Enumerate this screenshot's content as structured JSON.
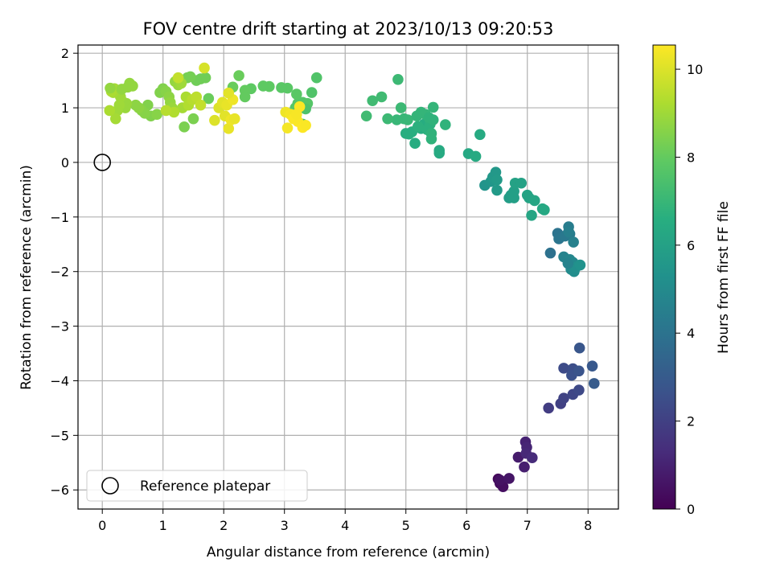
{
  "chart_data": {
    "type": "scatter",
    "title": "FOV centre drift starting at 2023/10/13 09:20:53",
    "xlabel": "Angular distance from reference (arcmin)",
    "ylabel": "Rotation from reference (arcmin)",
    "xlim": [
      -0.4,
      8.5
    ],
    "ylim": [
      -6.35,
      2.15
    ],
    "xticks": [
      0,
      1,
      2,
      3,
      4,
      5,
      6,
      7,
      8
    ],
    "yticks": [
      -6,
      -5,
      -4,
      -3,
      -2,
      -1,
      0,
      1,
      2
    ],
    "grid": true,
    "legend": {
      "placement": "lower-left",
      "entries": [
        "Reference platepar"
      ]
    },
    "colorbar": {
      "label": "Hours from first FF file",
      "range": [
        0,
        10.55
      ],
      "ticks": [
        0,
        2,
        4,
        6,
        8,
        10
      ],
      "colormap": "viridis"
    },
    "reference_point": {
      "x": 0,
      "y": 0,
      "label": "Reference platepar"
    },
    "points": [
      [
        6.52,
        -5.8,
        0.2
      ],
      [
        6.55,
        -5.88,
        0.3
      ],
      [
        6.6,
        -5.94,
        0.4
      ],
      [
        6.55,
        -5.82,
        0.5
      ],
      [
        6.7,
        -5.79,
        0.6
      ],
      [
        6.85,
        -5.4,
        0.8
      ],
      [
        6.95,
        -5.58,
        0.9
      ],
      [
        6.97,
        -5.12,
        1.0
      ],
      [
        6.99,
        -5.22,
        1.1
      ],
      [
        6.98,
        -5.33,
        1.2
      ],
      [
        7.08,
        -5.41,
        1.3
      ],
      [
        7.35,
        -4.5,
        1.9
      ],
      [
        7.55,
        -4.42,
        2.0
      ],
      [
        7.6,
        -4.32,
        2.1
      ],
      [
        7.75,
        -4.25,
        2.2
      ],
      [
        7.85,
        -4.17,
        2.3
      ],
      [
        7.6,
        -3.77,
        2.4
      ],
      [
        7.75,
        -3.78,
        2.5
      ],
      [
        7.73,
        -3.9,
        2.6
      ],
      [
        7.85,
        -3.82,
        2.7
      ],
      [
        7.86,
        -3.4,
        2.8
      ],
      [
        8.07,
        -3.73,
        2.9
      ],
      [
        8.1,
        -4.05,
        3.0
      ],
      [
        7.38,
        -1.66,
        3.9
      ],
      [
        7.5,
        -1.3,
        4.0
      ],
      [
        7.52,
        -1.4,
        4.1
      ],
      [
        7.62,
        -1.35,
        4.2
      ],
      [
        7.7,
        -1.31,
        4.3
      ],
      [
        7.68,
        -1.18,
        4.4
      ],
      [
        7.68,
        -1.27,
        4.5
      ],
      [
        7.76,
        -1.46,
        4.6
      ],
      [
        7.6,
        -1.73,
        4.7
      ],
      [
        7.7,
        -1.78,
        4.8
      ],
      [
        7.75,
        -1.83,
        4.9
      ],
      [
        7.72,
        -1.96,
        5.0
      ],
      [
        7.77,
        -2.0,
        5.1
      ],
      [
        7.8,
        -1.92,
        5.2
      ],
      [
        7.87,
        -1.88,
        5.3
      ],
      [
        7.67,
        -1.85,
        4.7
      ],
      [
        6.3,
        -0.42,
        5.4
      ],
      [
        6.4,
        -0.35,
        5.5
      ],
      [
        6.43,
        -0.27,
        5.6
      ],
      [
        6.48,
        -0.18,
        5.6
      ],
      [
        6.5,
        -0.32,
        5.7
      ],
      [
        6.5,
        -0.51,
        5.7
      ],
      [
        6.7,
        -0.65,
        5.8
      ],
      [
        6.73,
        -0.6,
        5.8
      ],
      [
        6.78,
        -0.65,
        5.9
      ],
      [
        6.78,
        -0.53,
        5.9
      ],
      [
        6.8,
        -0.38,
        6.0
      ],
      [
        6.9,
        -0.38,
        6.0
      ],
      [
        7.0,
        -0.6,
        6.1
      ],
      [
        7.03,
        -0.65,
        6.1
      ],
      [
        7.07,
        -0.97,
        6.2
      ],
      [
        7.12,
        -0.7,
        6.2
      ],
      [
        7.25,
        -0.85,
        6.3
      ],
      [
        7.28,
        -0.87,
        6.3
      ],
      [
        6.03,
        0.16,
        6.3
      ],
      [
        6.15,
        0.11,
        6.4
      ],
      [
        6.22,
        0.51,
        6.4
      ],
      [
        5.55,
        0.22,
        6.4
      ],
      [
        5.55,
        0.17,
        6.4
      ],
      [
        5.15,
        0.35,
        6.5
      ],
      [
        5.25,
        0.62,
        6.5
      ],
      [
        5.3,
        0.7,
        6.5
      ],
      [
        5.0,
        0.53,
        6.6
      ],
      [
        5.05,
        0.52,
        6.6
      ],
      [
        5.1,
        0.56,
        6.6
      ],
      [
        5.2,
        0.66,
        6.7
      ],
      [
        5.35,
        0.6,
        6.7
      ],
      [
        5.4,
        0.7,
        6.7
      ],
      [
        5.45,
        0.78,
        6.8
      ],
      [
        5.42,
        0.53,
        6.8
      ],
      [
        5.42,
        0.43,
        6.8
      ],
      [
        5.32,
        0.88,
        6.9
      ],
      [
        5.25,
        0.92,
        6.9
      ],
      [
        5.45,
        1.01,
        6.9
      ],
      [
        4.97,
        0.8,
        7.0
      ],
      [
        5.03,
        0.78,
        7.0
      ],
      [
        4.85,
        0.78,
        7.0
      ],
      [
        4.7,
        0.8,
        7.1
      ],
      [
        4.92,
        1.0,
        7.1
      ],
      [
        4.87,
        1.52,
        7.1
      ],
      [
        4.6,
        1.2,
        7.2
      ],
      [
        4.45,
        1.13,
        7.2
      ],
      [
        4.35,
        0.85,
        7.2
      ],
      [
        5.65,
        0.69,
        6.8
      ],
      [
        5.38,
        0.82,
        6.8
      ],
      [
        5.18,
        0.85,
        6.9
      ],
      [
        3.53,
        1.55,
        7.6
      ],
      [
        3.45,
        1.28,
        7.6
      ],
      [
        3.38,
        1.08,
        7.7
      ],
      [
        3.3,
        1.1,
        7.7
      ],
      [
        3.18,
        1.0,
        7.7
      ],
      [
        3.22,
        1.08,
        7.7
      ],
      [
        3.2,
        1.25,
        7.8
      ],
      [
        3.05,
        1.36,
        7.8
      ],
      [
        2.95,
        1.37,
        7.8
      ],
      [
        2.75,
        1.39,
        7.9
      ],
      [
        2.65,
        1.4,
        7.9
      ],
      [
        2.45,
        1.35,
        7.9
      ],
      [
        2.35,
        1.32,
        8.0
      ],
      [
        2.35,
        1.2,
        8.0
      ],
      [
        2.25,
        1.59,
        8.1
      ],
      [
        2.15,
        1.38,
        8.1
      ],
      [
        1.75,
        1.17,
        8.1
      ],
      [
        1.7,
        1.55,
        8.2
      ],
      [
        1.62,
        1.53,
        8.2
      ],
      [
        1.55,
        1.5,
        8.2
      ],
      [
        1.45,
        1.57,
        8.3
      ],
      [
        1.4,
        1.55,
        8.3
      ],
      [
        1.5,
        0.8,
        8.4
      ],
      [
        1.35,
        0.65,
        8.4
      ],
      [
        3.35,
        0.98,
        7.5
      ],
      [
        3.3,
        0.7,
        7.4
      ],
      [
        0.8,
        0.85,
        8.5
      ],
      [
        0.75,
        1.05,
        8.5
      ],
      [
        0.7,
        0.9,
        8.6
      ],
      [
        0.65,
        0.95,
        8.6
      ],
      [
        0.6,
        1.0,
        8.7
      ],
      [
        0.55,
        1.05,
        8.7
      ],
      [
        0.5,
        1.4,
        8.8
      ],
      [
        0.45,
        1.45,
        8.8
      ],
      [
        0.42,
        1.38,
        8.8
      ],
      [
        0.4,
        1.08,
        8.9
      ],
      [
        0.38,
        1.0,
        8.9
      ],
      [
        0.35,
        1.1,
        8.9
      ],
      [
        0.3,
        1.2,
        9.0
      ],
      [
        0.28,
        1.05,
        9.0
      ],
      [
        0.25,
        0.95,
        9.0
      ],
      [
        0.22,
        0.8,
        9.1
      ],
      [
        0.2,
        1.35,
        9.1
      ],
      [
        0.18,
        1.28,
        9.1
      ],
      [
        0.15,
        1.3,
        9.2
      ],
      [
        0.12,
        0.95,
        9.2
      ],
      [
        0.13,
        1.36,
        8.8
      ],
      [
        0.32,
        1.34,
        8.8
      ],
      [
        0.9,
        0.88,
        8.6
      ],
      [
        0.95,
        1.28,
        8.5
      ],
      [
        1.0,
        1.35,
        8.5
      ],
      [
        1.05,
        1.3,
        8.6
      ],
      [
        1.1,
        1.2,
        8.7
      ],
      [
        1.12,
        1.1,
        8.8
      ],
      [
        1.15,
        1.0,
        8.9
      ],
      [
        1.2,
        1.48,
        8.8
      ],
      [
        1.25,
        1.42,
        8.9
      ],
      [
        1.3,
        1.45,
        9.0
      ],
      [
        1.32,
        1.0,
        9.1
      ],
      [
        1.38,
        1.2,
        9.2
      ],
      [
        1.42,
        1.05,
        9.3
      ],
      [
        1.48,
        1.15,
        9.4
      ],
      [
        1.55,
        1.2,
        9.5
      ],
      [
        1.62,
        1.05,
        9.6
      ],
      [
        1.18,
        0.92,
        9.3
      ],
      [
        1.05,
        0.95,
        9.4
      ],
      [
        1.25,
        1.55,
        9.6
      ],
      [
        1.68,
        1.73,
        9.9
      ],
      [
        1.85,
        0.77,
        10.0
      ],
      [
        1.92,
        1.0,
        10.0
      ],
      [
        1.98,
        1.1,
        10.1
      ],
      [
        2.02,
        0.85,
        10.1
      ],
      [
        2.05,
        1.05,
        10.2
      ],
      [
        2.08,
        0.62,
        10.2
      ],
      [
        2.12,
        0.78,
        10.3
      ],
      [
        2.15,
        1.15,
        10.3
      ],
      [
        2.18,
        0.8,
        10.2
      ],
      [
        2.08,
        1.27,
        10.1
      ],
      [
        3.02,
        0.92,
        10.3
      ],
      [
        3.05,
        0.63,
        10.4
      ],
      [
        3.1,
        0.88,
        10.4
      ],
      [
        3.15,
        0.8,
        10.5
      ],
      [
        3.22,
        0.75,
        10.5
      ],
      [
        3.25,
        1.02,
        10.5
      ],
      [
        3.3,
        0.64,
        10.55
      ],
      [
        3.35,
        0.68,
        10.5
      ],
      [
        3.2,
        0.88,
        10.45
      ]
    ]
  }
}
